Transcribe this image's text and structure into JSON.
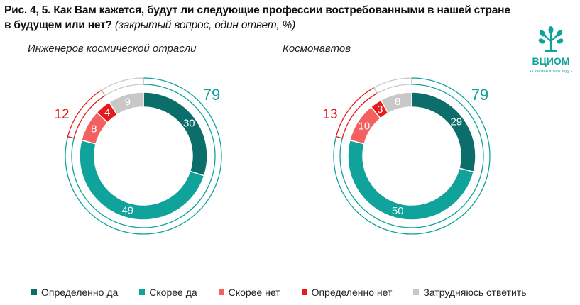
{
  "title": {
    "main": "Рис. 4, 5. Как Вам кажется, будут ли следующие профессии востребованными в нашей стране в будущем или нет?",
    "sub": "(закрытый вопрос, один ответ, %)"
  },
  "logo": {
    "text": "ВЦИОМ",
    "tagline": "• Основан в 1987 году •"
  },
  "colors": {
    "definitely_yes": "#0c6e6b",
    "rather_yes": "#0fa39c",
    "rather_no": "#f4605f",
    "definitely_no": "#e8191a",
    "hard_to_say": "#c8c8c8",
    "yes_total": "#0fa39c",
    "no_total": "#e8191a"
  },
  "chart_data": [
    {
      "type": "pie",
      "title": "Инженеров космической отрасли",
      "categories": [
        "Определенно да",
        "Скорее да",
        "Скорее нет",
        "Определенно нет",
        "Затрудняюсь ответить"
      ],
      "values": [
        30,
        49,
        8,
        4,
        9
      ],
      "totals": {
        "yes": 79,
        "no": 12,
        "hard_to_say": 9
      },
      "legend_position": "bottom"
    },
    {
      "type": "pie",
      "title": "Космонавтов",
      "categories": [
        "Определенно да",
        "Скорее да",
        "Скорее нет",
        "Определенно нет",
        "Затрудняюсь ответить"
      ],
      "values": [
        29,
        50,
        10,
        3,
        8
      ],
      "totals": {
        "yes": 79,
        "no": 13,
        "hard_to_say": 8
      },
      "legend_position": "bottom"
    }
  ]
}
